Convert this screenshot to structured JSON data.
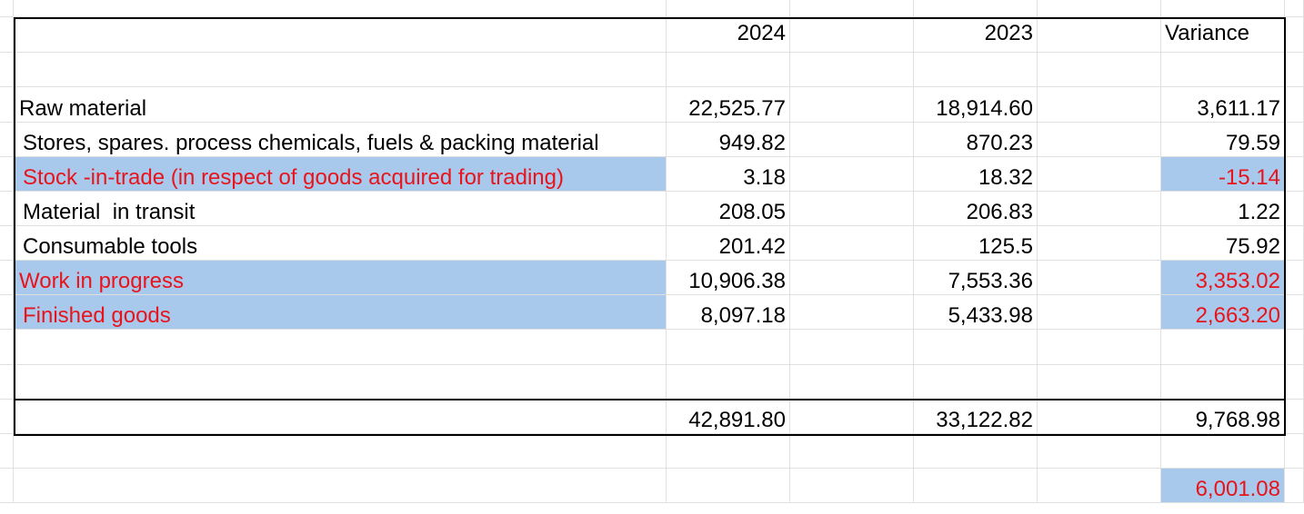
{
  "header": {
    "y2024": "2024",
    "y2023": "2023",
    "variance": "Variance"
  },
  "rows": [
    {
      "label": "Raw material",
      "y2024": "22,525.77",
      "y2023": "18,914.60",
      "variance": "3,611.17"
    },
    {
      "label": "Stores, spares. process chemicals, fuels & packing material",
      "y2024": "949.82",
      "y2023": "870.23",
      "variance": "79.59"
    },
    {
      "label": "Stock -in-trade (in respect of goods acquired for trading)",
      "y2024": "3.18",
      "y2023": "18.32",
      "variance": "-15.14"
    },
    {
      "label": "Material  in transit",
      "y2024": "208.05",
      "y2023": "206.83",
      "variance": "1.22"
    },
    {
      "label": "Consumable tools",
      "y2024": "201.42",
      "y2023": "125.5",
      "variance": "75.92"
    },
    {
      "label": "Work in progress",
      "y2024": "10,906.38",
      "y2023": "7,553.36",
      "variance": "3,353.02"
    },
    {
      "label": "Finished goods",
      "y2024": "8,097.18",
      "y2023": "5,433.98",
      "variance": "2,663.20"
    }
  ],
  "total": {
    "y2024": "42,891.80",
    "y2023": "33,122.82",
    "variance": "9,768.98"
  },
  "highlight_sum": "6,001.08",
  "colors": {
    "highlight_fill": "#a9c9ec",
    "highlight_text": "#e8141c",
    "gridline": "#e0e0e0"
  }
}
